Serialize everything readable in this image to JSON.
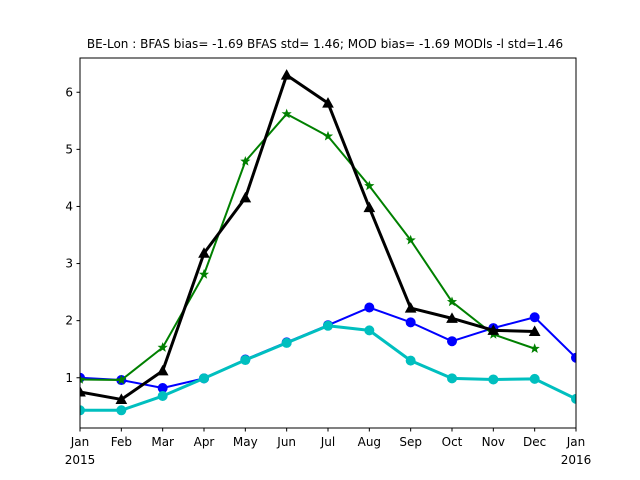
{
  "chart_data": {
    "type": "line",
    "title": "BE-Lon   : BFAS bias= -1.69 BFAS std= 1.46; MOD bias= -1.69 MODls -l std=1.46",
    "x": [
      "2015-01",
      "2015-02",
      "2015-03",
      "2015-04",
      "2015-05",
      "2015-06",
      "2015-07",
      "2015-08",
      "2015-09",
      "2015-10",
      "2015-11",
      "2015-12",
      "2016-01"
    ],
    "x_tick_labels": [
      "Jan",
      "Feb",
      "Mar",
      "Apr",
      "May",
      "Jun",
      "Jul",
      "Aug",
      "Sep",
      "Oct",
      "Nov",
      "Dec",
      "Jan"
    ],
    "x_year_labels": [
      {
        "x": "2015-01",
        "label": "2015"
      },
      {
        "x": "2016-01",
        "label": "2016"
      }
    ],
    "xlim": [
      "2015-01",
      "2016-01"
    ],
    "ylim": [
      0.12,
      6.6
    ],
    "y_ticks": [
      1,
      2,
      3,
      4,
      5,
      6
    ],
    "grid": false,
    "series": [
      {
        "color": "#0000ff",
        "marker": "circle",
        "line_weight": "medium",
        "values": [
          1.0,
          0.96,
          0.82,
          0.99,
          1.32,
          1.62,
          1.92,
          2.23,
          1.97,
          1.64,
          1.87,
          2.06,
          1.35
        ]
      },
      {
        "color": "#00bfbf",
        "marker": "circle",
        "line_weight": "thick",
        "values": [
          0.43,
          0.43,
          0.68,
          0.99,
          1.31,
          1.61,
          1.91,
          1.83,
          1.3,
          0.99,
          0.97,
          0.98,
          0.63
        ]
      },
      {
        "color": "#008000",
        "marker": "star",
        "line_weight": "medium",
        "values": [
          0.97,
          0.96,
          1.53,
          2.81,
          4.79,
          5.62,
          5.23,
          4.36,
          3.41,
          2.33,
          1.76,
          1.51,
          null
        ]
      },
      {
        "color": "#000000",
        "marker": "triangle",
        "line_weight": "thick",
        "values": [
          0.75,
          0.62,
          1.12,
          3.18,
          4.15,
          6.3,
          5.81,
          3.98,
          2.22,
          2.04,
          1.83,
          1.81,
          null
        ]
      }
    ]
  }
}
